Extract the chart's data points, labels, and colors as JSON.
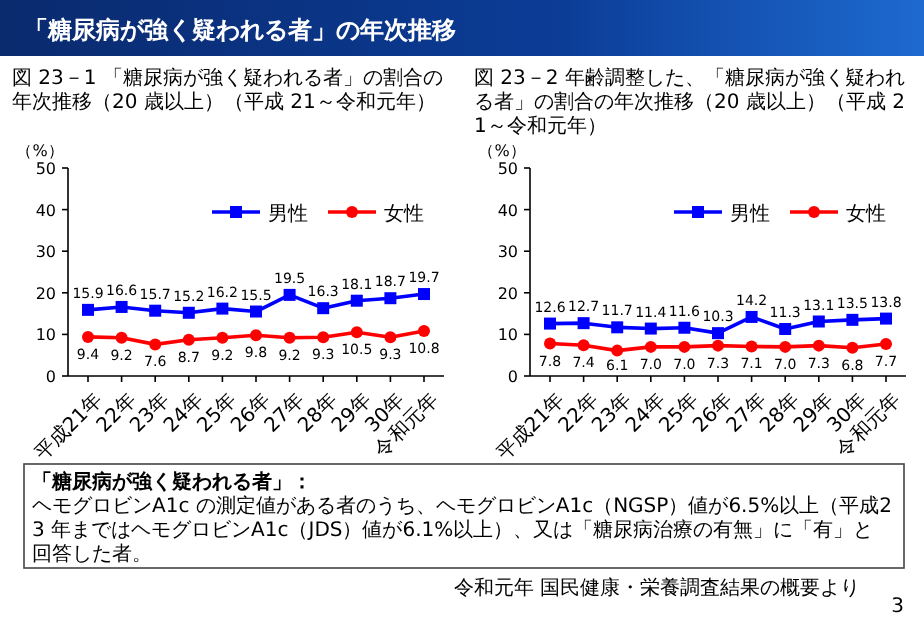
{
  "chart_data": [
    {
      "type": "other",
      "title": "「糖尿病が強く疑われる者」の年次推移",
      "annotations": [
        "「糖尿病が強く疑われる者」：",
        "ヘモグロビンA1c の測定値がある者のうち、ヘモグロビンA1c（NGSP）値が6.5%以上（平成23 年まではヘモグロビンA1c（JDS）値が6.1%以上）、又は「糖尿病治療の有無」に「有」と回答した者。",
        "令和元年 国民健康・栄養調査結果の概要より",
        "3"
      ]
    },
    {
      "type": "line",
      "title": "図 23－1 「糖尿病が強く疑われる者」の割合の年次推移（20 歳以上）（平成 21～令和元年）",
      "ylabel": "（%）",
      "categories": [
        "平成21年",
        "22年",
        "23年",
        "24年",
        "25年",
        "26年",
        "27年",
        "28年",
        "29年",
        "30年",
        "令和元年"
      ],
      "ylim": [
        0,
        50
      ],
      "yticks": [
        0,
        10,
        20,
        30,
        40,
        50
      ],
      "legend": "top right",
      "data_labels": true,
      "series": [
        {
          "name": "男性",
          "color": "#0000ff",
          "marker": "square",
          "values": [
            15.9,
            16.6,
            15.7,
            15.2,
            16.2,
            15.5,
            19.5,
            16.3,
            18.1,
            18.7,
            19.7
          ]
        },
        {
          "name": "女性",
          "color": "#ff0000",
          "marker": "circle",
          "values": [
            9.4,
            9.2,
            7.6,
            8.7,
            9.2,
            9.8,
            9.2,
            9.3,
            10.5,
            9.3,
            10.8
          ]
        }
      ]
    },
    {
      "type": "line",
      "title": "図 23－2 年齢調整した、「糖尿病が強く疑われる者」の割合の年次推移（20 歳以上）（平成 21～令和元年）",
      "ylabel": "（%）",
      "categories": [
        "平成21年",
        "22年",
        "23年",
        "24年",
        "25年",
        "26年",
        "27年",
        "28年",
        "29年",
        "30年",
        "令和元年"
      ],
      "ylim": [
        0,
        50
      ],
      "yticks": [
        0,
        10,
        20,
        30,
        40,
        50
      ],
      "legend": "top right",
      "data_labels": true,
      "series": [
        {
          "name": "男性",
          "color": "#0000ff",
          "marker": "square",
          "values": [
            12.6,
            12.7,
            11.7,
            11.4,
            11.6,
            10.3,
            14.2,
            11.3,
            13.1,
            13.5,
            13.8
          ]
        },
        {
          "name": "女性",
          "color": "#ff0000",
          "marker": "circle",
          "values": [
            7.8,
            7.4,
            6.1,
            7.0,
            7.0,
            7.3,
            7.1,
            7.0,
            7.3,
            6.8,
            7.7
          ],
          "value_labels": [
            "7.8",
            "7.4",
            "6.1",
            "7.0",
            "7.0",
            "7.3",
            "7.1",
            "7.0",
            "7.3",
            "6.8",
            "7.7"
          ]
        }
      ]
    }
  ]
}
